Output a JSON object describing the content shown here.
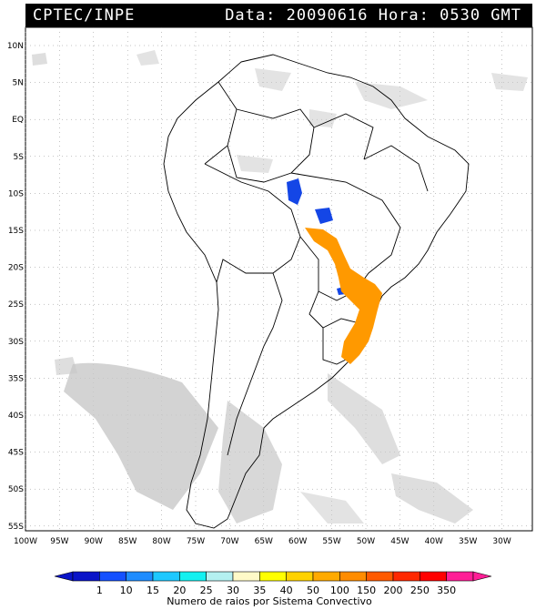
{
  "header": {
    "source": "CPTEC/INPE",
    "datetime": "Data: 20090616 Hora: 0530 GMT"
  },
  "map": {
    "lat_labels": [
      "10N",
      "5N",
      "EQ",
      "5S",
      "10S",
      "15S",
      "20S",
      "25S",
      "30S",
      "35S",
      "40S",
      "45S",
      "50S",
      "55S"
    ],
    "lon_labels": [
      "100W",
      "95W",
      "90W",
      "85W",
      "80W",
      "75W",
      "70W",
      "65W",
      "60W",
      "55W",
      "50W",
      "45W",
      "40W",
      "35W",
      "30W"
    ],
    "lightning_colors": {
      "low": "#1446e6",
      "mid": "#ff9900"
    }
  },
  "legend": {
    "title": "Numero de raios por Sistema Convectivo",
    "values": [
      "1",
      "10",
      "15",
      "20",
      "25",
      "30",
      "35",
      "40",
      "50",
      "100",
      "150",
      "200",
      "250",
      "350"
    ],
    "colors": [
      "#0a14c8",
      "#1450ff",
      "#1e8cff",
      "#1ec8ff",
      "#14f0f0",
      "#b4f0f0",
      "#fffac8",
      "#ffff00",
      "#ffd200",
      "#ffaa00",
      "#ff8c00",
      "#ff5a00",
      "#ff2800",
      "#ff0000",
      "#ff1e96"
    ]
  }
}
